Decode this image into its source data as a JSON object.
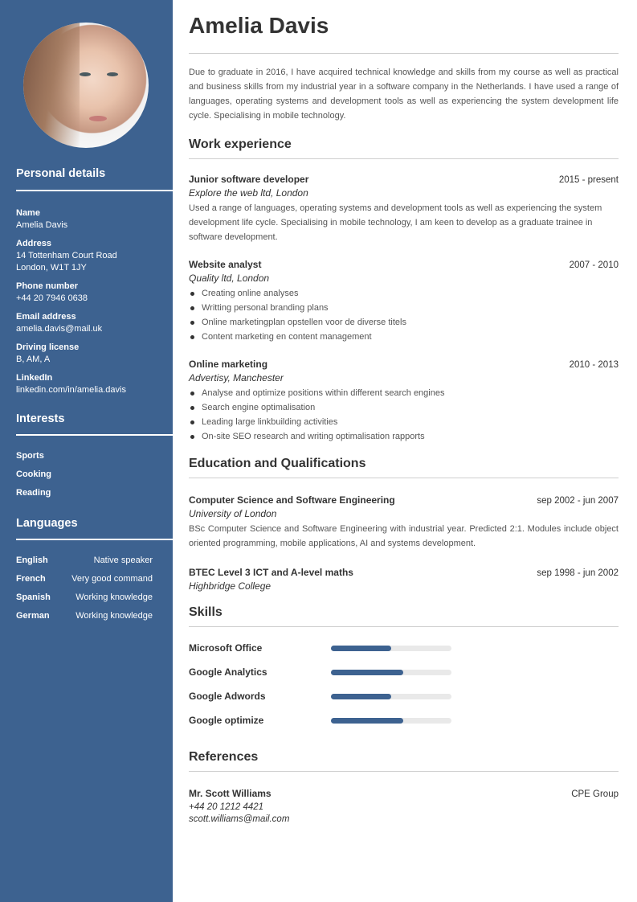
{
  "sidebar": {
    "personal_title": "Personal details",
    "details": [
      {
        "label": "Name",
        "lines": [
          "Amelia Davis"
        ]
      },
      {
        "label": "Address",
        "lines": [
          "14 Tottenham Court Road",
          "London, W1T 1JY"
        ]
      },
      {
        "label": "Phone number",
        "lines": [
          "+44 20 7946 0638"
        ]
      },
      {
        "label": "Email address",
        "lines": [
          "amelia.davis@mail.uk"
        ]
      },
      {
        "label": "Driving license",
        "lines": [
          "B, AM, A"
        ]
      },
      {
        "label": "LinkedIn",
        "lines": [
          "linkedin.com/in/amelia.davis"
        ]
      }
    ],
    "interests_title": "Interests",
    "interests": [
      "Sports",
      "Cooking",
      "Reading"
    ],
    "languages_title": "Languages",
    "languages": [
      {
        "name": "English",
        "level": "Native speaker"
      },
      {
        "name": "French",
        "level": "Very good command"
      },
      {
        "name": "Spanish",
        "level": "Working knowledge"
      },
      {
        "name": "German",
        "level": "Working knowledge"
      }
    ],
    "accent": "#3d6290"
  },
  "main": {
    "name": "Amelia Davis",
    "summary": "Due to graduate in 2016, I have acquired technical knowledge and skills from my course as well as practical and business skills from my industrial year in a software company in the Netherlands. I have used a range of languages, operating systems and development tools as well as experiencing the system development life cycle. Specialising in mobile technology.",
    "work_title": "Work experience",
    "jobs": [
      {
        "title": "Junior software developer",
        "dates": "2015 - present",
        "company": "Explore the web ltd, London",
        "desc": "Used a range of languages, operating systems and development tools as well as experiencing the system development life cycle. Specialising in mobile technology, I am keen to develop as a graduate trainee in software development."
      },
      {
        "title": "Website analyst",
        "dates": "2007 - 2010",
        "company": "Quality ltd, London",
        "bullets": [
          "Creating online analyses",
          "Writting personal branding plans",
          "Online marketingplan opstellen voor de diverse titels",
          "Content marketing en content management"
        ]
      },
      {
        "title": "Online marketing",
        "dates": "2010 - 2013",
        "company": "Advertisy, Manchester",
        "bullets": [
          "Analyse and optimize positions within different search engines",
          "Search engine optimalisation",
          "Leading large linkbuilding activities",
          "On-site SEO research and writing optimalisation rapports"
        ]
      }
    ],
    "education_title": "Education and Qualifications",
    "education": [
      {
        "title": "Computer Science and Software Engineering",
        "dates": "sep 2002 - jun 2007",
        "school": "University of London",
        "desc": "BSc Computer Science and Software Engineering with industrial year. Predicted 2:1. Modules include object oriented programming, mobile applications, AI and systems development."
      },
      {
        "title": "BTEC Level 3 ICT and A-level maths",
        "dates": "sep 1998 - jun 2002",
        "school": "Highbridge College"
      }
    ],
    "skills_title": "Skills",
    "skills": [
      {
        "name": "Microsoft Office",
        "level": 0.5
      },
      {
        "name": "Google Analytics",
        "level": 0.6
      },
      {
        "name": "Google Adwords",
        "level": 0.5
      },
      {
        "name": "Google optimize",
        "level": 0.6
      }
    ],
    "references_title": "References",
    "reference": {
      "name": "Mr. Scott Williams",
      "company": "CPE Group",
      "phone": "+44 20 1212 4421",
      "email": "scott.williams@mail.com"
    }
  }
}
